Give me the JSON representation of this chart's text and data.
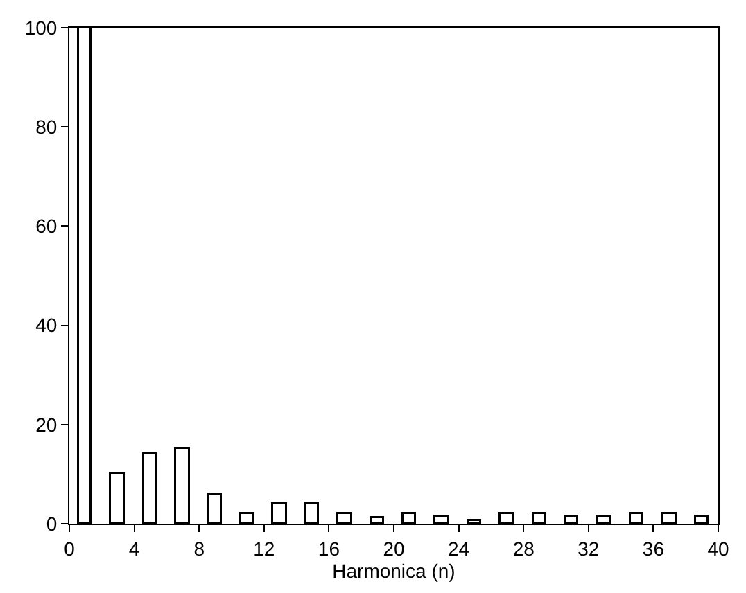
{
  "chart_data": {
    "type": "bar",
    "xlabel": "Harmonica (n)",
    "x": [
      1,
      3,
      5,
      7,
      9,
      11,
      13,
      15,
      17,
      19,
      21,
      23,
      25,
      27,
      29,
      31,
      33,
      35,
      37,
      39
    ],
    "values": [
      100,
      10,
      14,
      15,
      6,
      2,
      4,
      4,
      2,
      1,
      2,
      1.5,
      0.5,
      2,
      2,
      1.5,
      1.5,
      2,
      2,
      1.5
    ],
    "color": "#ffffff",
    "xlim": [
      0,
      40
    ],
    "xticks": [
      0,
      4,
      8,
      12,
      16,
      20,
      24,
      28,
      32,
      36,
      40
    ],
    "ylim": [
      0,
      100
    ],
    "yticks": [
      0,
      20,
      40,
      60,
      80,
      100
    ]
  }
}
